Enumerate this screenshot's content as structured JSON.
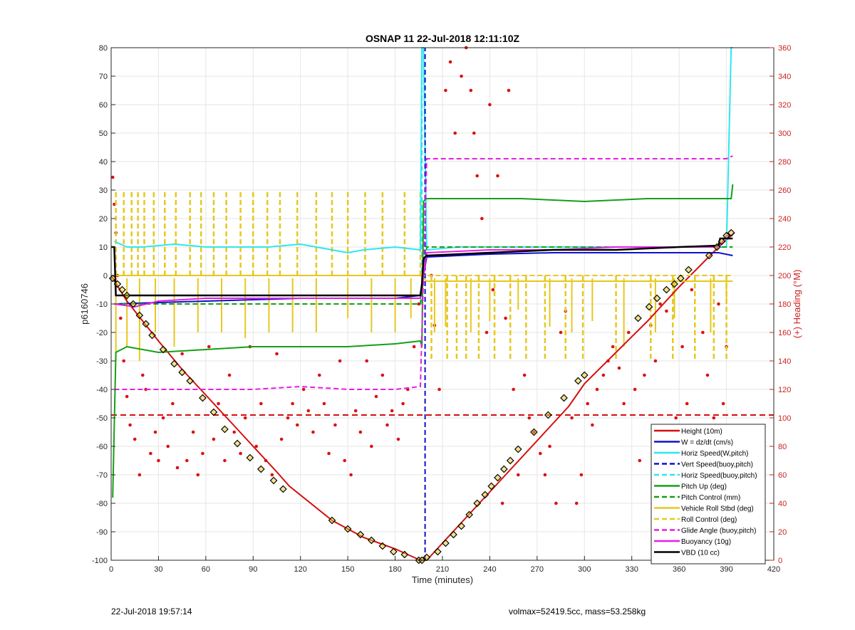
{
  "footer": {
    "left": "22-Jul-2018 19:57:14",
    "right": "volmax=52419.5cc, mass=53.258kg"
  },
  "chart_data": {
    "type": "line",
    "title": "OSNAP 11 22-Jul-2018 12:11:10Z",
    "xlabel": "Time (minutes)",
    "ylabel": "p6160746",
    "y2label": "(+) Heading (°M)",
    "xlim": [
      0,
      420
    ],
    "ylim": [
      -100,
      80
    ],
    "y2lim": [
      0,
      360
    ],
    "xticks": [
      0,
      30,
      60,
      90,
      120,
      150,
      180,
      210,
      240,
      270,
      300,
      330,
      360,
      390,
      420
    ],
    "yticks": [
      -100,
      -90,
      -80,
      -70,
      -60,
      -50,
      -40,
      -30,
      -20,
      -10,
      0,
      10,
      20,
      30,
      40,
      50,
      60,
      70,
      80
    ],
    "y2ticks": [
      0,
      20,
      40,
      60,
      80,
      100,
      120,
      140,
      160,
      180,
      200,
      220,
      240,
      260,
      280,
      300,
      320,
      340,
      360
    ],
    "grid": true,
    "legend_position": "bottom-right",
    "colors": {
      "red": "#d40f0f",
      "blue": "#1010c8",
      "cyan": "#2ee6f0",
      "green": "#14a014",
      "yellow": "#e6c81e",
      "magenta": "#e61ee6",
      "black": "#000000",
      "heading": "#dd1111"
    },
    "series": [
      {
        "name": "Height (10m)",
        "color": "red",
        "dash": false,
        "x": [
          0,
          10,
          20,
          30,
          45,
          60,
          75,
          90,
          105,
          113,
          140,
          160,
          180,
          196,
          200,
          210,
          230,
          250,
          270,
          290,
          300,
          320,
          340,
          360,
          385,
          395
        ],
        "y": [
          0,
          -9,
          -16,
          -23,
          -33,
          -42,
          -51,
          -60,
          -69,
          -74,
          -86,
          -92,
          -96,
          -100,
          -100,
          -94,
          -82,
          -70,
          -58,
          -46,
          -38,
          -27,
          -16,
          -4,
          10,
          15
        ]
      },
      {
        "name": "W = dz/dt (cm/s)",
        "color": "blue",
        "dash": false,
        "x": [
          2,
          30,
          60,
          90,
          120,
          150,
          180,
          196,
          198,
          200,
          240,
          280,
          320,
          360,
          385,
          394
        ],
        "y": [
          -10,
          -9.5,
          -9,
          -8.5,
          -8,
          -8,
          -8,
          -7,
          0,
          6.5,
          7.5,
          8,
          8,
          8,
          8,
          7
        ]
      },
      {
        "name": "Horiz Speed(W,pitch)",
        "color": "cyan",
        "dash": false,
        "x": [
          2,
          10,
          20,
          40,
          60,
          80,
          100,
          120,
          140,
          150,
          160,
          180,
          196,
          197,
          198,
          200,
          220,
          240,
          270,
          300,
          330,
          360,
          390,
          393,
          394
        ],
        "y": [
          12,
          10,
          10,
          11,
          10,
          10,
          10,
          11,
          9,
          8,
          9,
          10,
          9,
          80,
          80,
          9,
          10,
          10,
          10,
          10,
          10,
          10,
          10,
          80,
          80
        ]
      },
      {
        "name": "Vert Speed(buoy,pitch)",
        "color": "blue",
        "dash": true,
        "x": [
          199,
          199
        ],
        "y": [
          -100,
          80
        ]
      },
      {
        "name": "Horiz Speed(buoy,pitch)",
        "color": "cyan",
        "dash": true,
        "x": [
          197,
          197
        ],
        "y": [
          -10,
          80
        ]
      },
      {
        "name": "Pitch Up (deg)",
        "color": "green",
        "dash": false,
        "x": [
          1,
          3,
          10,
          30,
          60,
          90,
          120,
          150,
          180,
          196,
          197,
          198,
          200,
          230,
          260,
          300,
          340,
          380,
          393,
          394
        ],
        "y": [
          -78,
          -27,
          -25,
          -27,
          -26,
          -25,
          -25,
          -25,
          -24,
          -23,
          -25,
          26,
          27,
          27,
          27,
          26,
          27,
          27,
          27,
          32
        ]
      },
      {
        "name": "Pitch Control (mm)",
        "color": "green",
        "dash": true,
        "x": [
          2,
          30,
          60,
          90,
          120,
          150,
          180,
          196,
          198,
          200,
          240,
          280,
          320,
          360,
          390,
          394
        ],
        "y": [
          -10,
          -10,
          -10,
          -10,
          -10,
          -10,
          -10,
          -10,
          0,
          10,
          10,
          10,
          10,
          10,
          10,
          10
        ]
      },
      {
        "name": "Vehicle Roll Stbd (deg)",
        "color": "yellow",
        "dash": false,
        "x": [
          2,
          60,
          120,
          196,
          200,
          260,
          320,
          394
        ],
        "y": [
          0,
          0,
          0,
          0,
          -2,
          -2,
          -2,
          -2
        ]
      },
      {
        "name": "Roll Control (deg)",
        "color": "yellow",
        "dash": true,
        "x": [
          2,
          60,
          120,
          196,
          200,
          260,
          320,
          394
        ],
        "y": [
          0,
          0,
          0,
          0,
          0,
          0,
          0,
          0
        ]
      },
      {
        "name": "Glide Angle (buoy,pitch)",
        "color": "magenta",
        "dash": true,
        "x": [
          2,
          30,
          60,
          90,
          120,
          150,
          180,
          196,
          198,
          200,
          240,
          280,
          320,
          360,
          390,
          394
        ],
        "y": [
          -40,
          -40,
          -40,
          -40,
          -39,
          -40,
          -40,
          -39,
          0,
          41,
          41,
          41,
          41,
          41,
          41,
          42
        ]
      },
      {
        "name": "Buoyancy (10g)",
        "color": "magenta",
        "dash": false,
        "x": [
          2,
          15,
          30,
          60,
          90,
          120,
          150,
          180,
          196,
          198,
          200,
          240,
          280,
          320,
          360,
          385,
          390,
          394
        ],
        "y": [
          -10,
          -11,
          -9,
          -8,
          -8,
          -8,
          -8,
          -8,
          -8,
          0,
          8,
          9,
          9,
          10,
          10,
          10,
          14,
          14
        ]
      },
      {
        "name": "VBD (10 cc)",
        "color": "black",
        "dash": false,
        "x": [
          0,
          2,
          3,
          196,
          197,
          198,
          200,
          240,
          280,
          320,
          360,
          385,
          386,
          394
        ],
        "y": [
          10,
          10,
          -7,
          -7,
          -3,
          6,
          7,
          8,
          9,
          9,
          10,
          10.5,
          13,
          13
        ]
      }
    ],
    "pitch_control_spikes": {
      "x": [
        3,
        8,
        13,
        17,
        21,
        27,
        34,
        41,
        50,
        57,
        65,
        73,
        82,
        90,
        99,
        107,
        118,
        130,
        140,
        150,
        161,
        172,
        186,
        196,
        203,
        213,
        219,
        225,
        233,
        243,
        253,
        263,
        275,
        288,
        299,
        320,
        342,
        356,
        370,
        382,
        390
      ],
      "y": [
        30,
        30,
        30,
        30,
        30,
        30,
        30,
        30,
        30,
        30,
        30,
        30,
        30,
        30,
        30,
        30,
        30,
        30,
        30,
        30,
        30,
        30,
        30,
        30,
        -30,
        -30,
        -30,
        -30,
        -30,
        -30,
        -30,
        -30,
        -30,
        -30,
        -30,
        -30,
        -30,
        -30,
        -30,
        -30,
        -30
      ]
    },
    "roll_spikes": {
      "x": [
        3,
        10,
        18,
        28,
        40,
        55,
        70,
        85,
        100,
        115,
        130,
        150,
        165,
        180,
        190,
        205,
        212,
        228,
        240,
        258,
        278,
        292,
        305,
        325,
        345,
        357,
        380,
        390
      ],
      "y": [
        -30,
        -25,
        -30,
        -20,
        -25,
        -20,
        -20,
        -22,
        -20,
        -20,
        -20,
        -15,
        -20,
        -20,
        -15,
        -20,
        -18,
        -20,
        -16,
        -12,
        -18,
        -20,
        -16,
        -25,
        -20,
        -15,
        -20,
        -10
      ]
    },
    "vbd_markers": {
      "x": [
        1,
        4,
        7,
        10,
        14,
        18,
        22,
        26,
        33,
        40,
        45,
        50,
        58,
        65,
        72,
        80,
        88,
        95,
        103,
        109,
        140,
        150,
        158,
        165,
        172,
        179,
        186,
        195,
        197,
        200,
        207,
        212,
        217,
        222,
        227,
        232,
        237,
        241,
        245,
        249,
        253,
        258,
        268,
        277,
        287,
        296,
        300,
        334,
        341,
        346,
        352,
        357,
        361,
        366,
        379,
        384,
        387,
        390,
        393
      ],
      "y": [
        -1,
        -3,
        -5,
        -7,
        -10,
        -14,
        -17,
        -21,
        -26,
        -31,
        -34,
        -37,
        -43,
        -48,
        -54,
        -59,
        -64,
        -68,
        -72,
        -75,
        -86,
        -89,
        -91,
        -93,
        -95,
        -97,
        -98,
        -100,
        -100,
        -99,
        -97,
        -94,
        -91,
        -88,
        -84,
        -80,
        -77,
        -74,
        -71,
        -68,
        -65,
        -61,
        -55,
        -49,
        -43,
        -37,
        -35,
        -15,
        -11,
        -8,
        -5,
        -3,
        -1,
        2,
        7,
        10,
        12,
        14,
        15
      ]
    },
    "heading_reference": {
      "name": "Heading",
      "value": 102,
      "color": "red",
      "dash": true
    },
    "heading_scatter": {
      "x": [
        1,
        2,
        3,
        4,
        6,
        8,
        10,
        12,
        15,
        18,
        20,
        22,
        25,
        28,
        30,
        33,
        36,
        39,
        42,
        45,
        48,
        52,
        55,
        58,
        62,
        65,
        68,
        72,
        75,
        78,
        82,
        85,
        88,
        92,
        95,
        98,
        102,
        105,
        108,
        112,
        115,
        118,
        122,
        125,
        128,
        132,
        135,
        138,
        142,
        145,
        148,
        152,
        155,
        158,
        162,
        165,
        168,
        172,
        175,
        178,
        182,
        185,
        188,
        192,
        195,
        203,
        205,
        208,
        212,
        215,
        218,
        222,
        225,
        228,
        230,
        232,
        235,
        238,
        240,
        242,
        245,
        248,
        250,
        252,
        255,
        258,
        262,
        265,
        268,
        272,
        275,
        278,
        282,
        285,
        288,
        292,
        295,
        298,
        302,
        305,
        308,
        312,
        315,
        318,
        322,
        325,
        328,
        332,
        335,
        338,
        342,
        345,
        348,
        352,
        355,
        358,
        362,
        365,
        368,
        372,
        375,
        378,
        382,
        385,
        388,
        390,
        392
      ],
      "y": [
        269,
        250,
        230,
        200,
        170,
        140,
        115,
        95,
        85,
        60,
        130,
        120,
        75,
        90,
        70,
        100,
        80,
        110,
        65,
        145,
        70,
        90,
        60,
        75,
        150,
        85,
        110,
        70,
        130,
        90,
        75,
        100,
        150,
        80,
        110,
        70,
        60,
        145,
        85,
        100,
        110,
        95,
        120,
        105,
        90,
        130,
        110,
        75,
        95,
        140,
        70,
        60,
        105,
        90,
        140,
        80,
        115,
        130,
        95,
        105,
        85,
        110,
        120,
        150,
        180,
        200,
        165,
        120,
        330,
        350,
        300,
        340,
        360,
        330,
        300,
        270,
        240,
        160,
        320,
        190,
        270,
        40,
        170,
        330,
        120,
        60,
        130,
        100,
        90,
        75,
        60,
        80,
        40,
        160,
        175,
        100,
        40,
        60,
        110,
        95,
        120,
        130,
        140,
        150,
        135,
        110,
        160,
        120,
        70,
        130,
        165,
        140,
        180,
        175,
        90,
        100,
        150,
        110,
        190,
        70,
        160,
        130,
        100,
        180,
        110,
        150,
        90
      ]
    }
  }
}
